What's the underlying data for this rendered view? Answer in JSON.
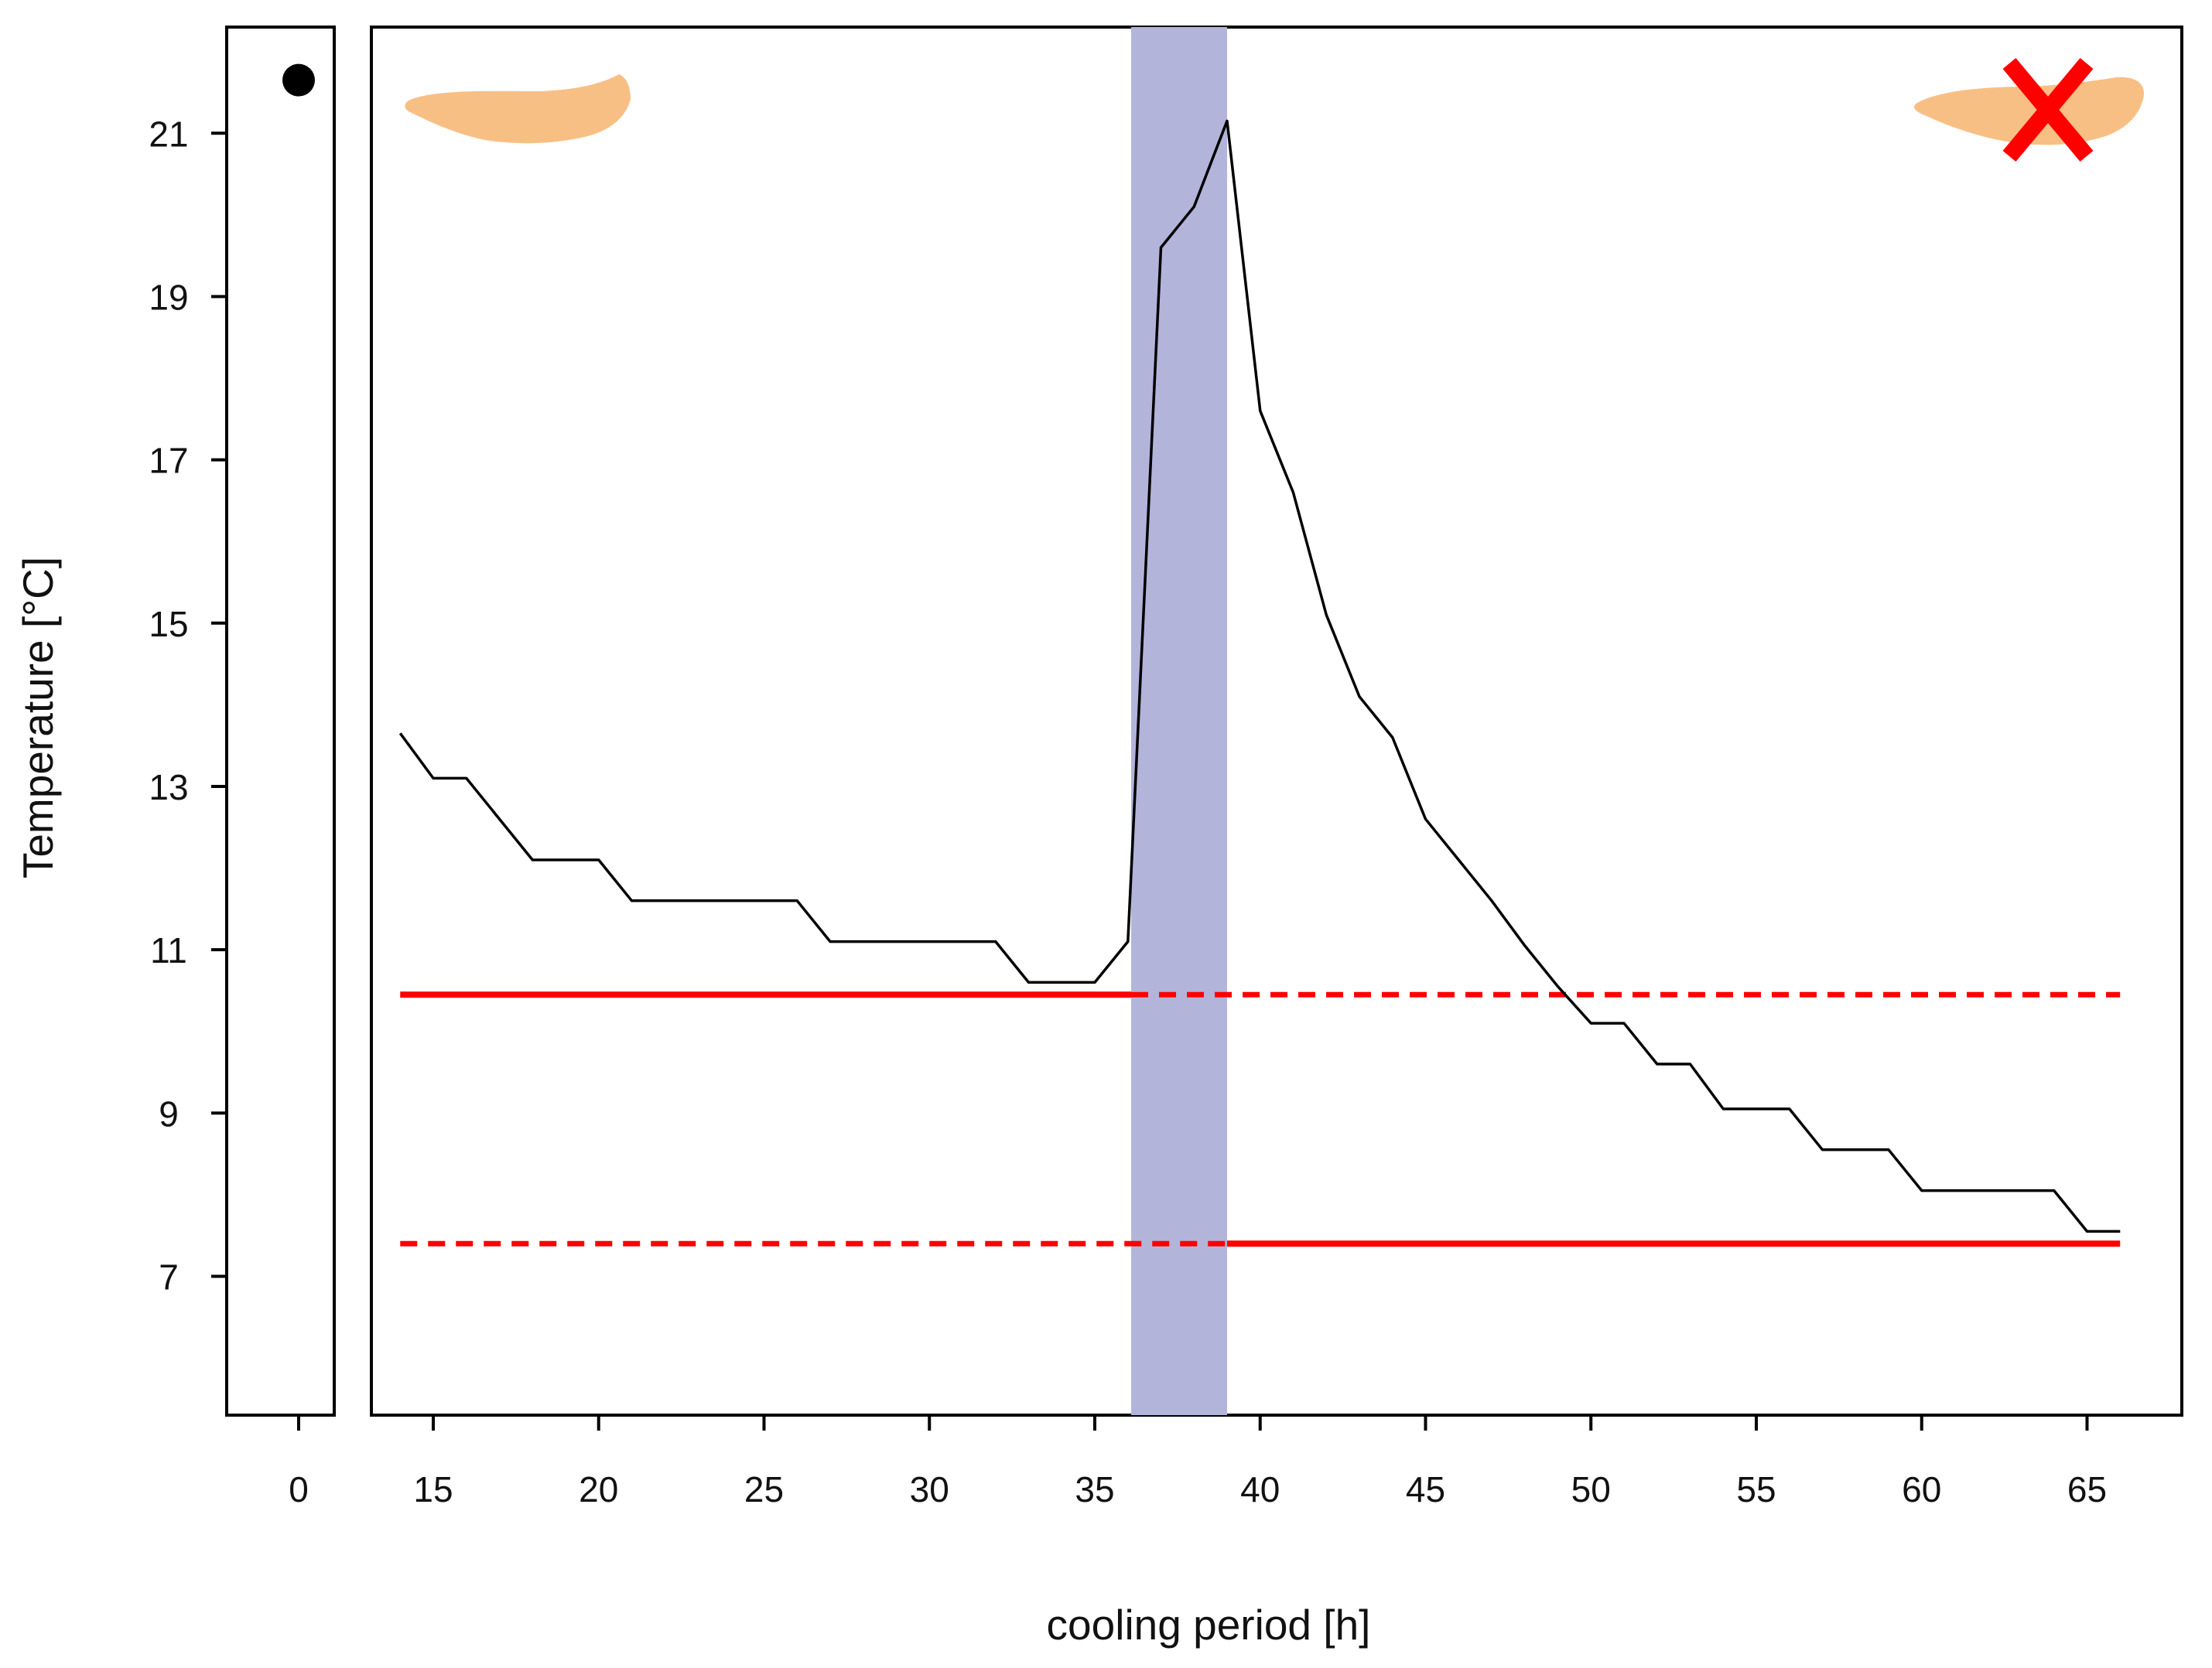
{
  "chart_data": {
    "type": "line",
    "title": "",
    "xlabel": "cooling period [h]",
    "ylabel": "Temperature [°C]",
    "ylim": [
      5.3,
      22.3
    ],
    "y_ticks": [
      7,
      9,
      11,
      13,
      15,
      17,
      19,
      21
    ],
    "initial_panel": {
      "x_ticks": [
        0
      ],
      "point": {
        "x": 0,
        "y": 21.65
      }
    },
    "main_panel": {
      "xlim": [
        13,
        68
      ],
      "x_ticks": [
        15,
        20,
        25,
        30,
        35,
        40,
        45,
        50,
        55,
        60,
        65
      ],
      "series": [
        {
          "name": "temperature",
          "x": [
            14,
            15,
            16,
            18,
            20,
            21,
            22,
            23,
            25,
            26,
            27,
            28,
            30,
            32,
            33,
            34,
            35,
            36,
            37,
            38,
            39,
            40,
            41,
            42,
            43,
            44,
            45,
            46,
            47,
            48,
            49,
            50,
            51,
            52,
            53,
            54,
            55,
            56,
            57,
            58,
            59,
            60,
            61,
            62,
            63,
            64,
            65,
            66
          ],
          "y": [
            13.65,
            13.1,
            13.1,
            12.1,
            12.1,
            11.6,
            11.6,
            11.6,
            11.6,
            11.6,
            11.1,
            11.1,
            11.1,
            11.1,
            10.6,
            10.6,
            10.6,
            11.1,
            19.6,
            20.1,
            21.15,
            17.6,
            16.6,
            15.1,
            14.1,
            13.6,
            12.6,
            12.1,
            11.6,
            11.05,
            10.55,
            10.1,
            10.1,
            9.6,
            9.6,
            9.05,
            9.05,
            9.05,
            8.55,
            8.55,
            8.55,
            8.05,
            8.05,
            8.05,
            8.05,
            8.05,
            7.55,
            7.55
          ],
          "color": "#000000"
        }
      ],
      "shaded_band": {
        "x_start": 36.1,
        "x_end": 39,
        "color": "#b3b4da"
      },
      "thresholds": [
        {
          "y": 10.45,
          "x_start": 14,
          "x_end": 66,
          "solid_until": 36.1,
          "color": "#ff0000"
        },
        {
          "y": 7.4,
          "x_start": 14,
          "x_end": 66,
          "solid_from": 39,
          "color": "#ff0000"
        }
      ]
    },
    "annotations": [
      {
        "name": "larva-alive-icon",
        "color": "#f8bf85"
      },
      {
        "name": "larva-dead-icon",
        "color": "#f8bf85",
        "mark": "red-cross",
        "mark_color": "#ff0000"
      }
    ]
  }
}
